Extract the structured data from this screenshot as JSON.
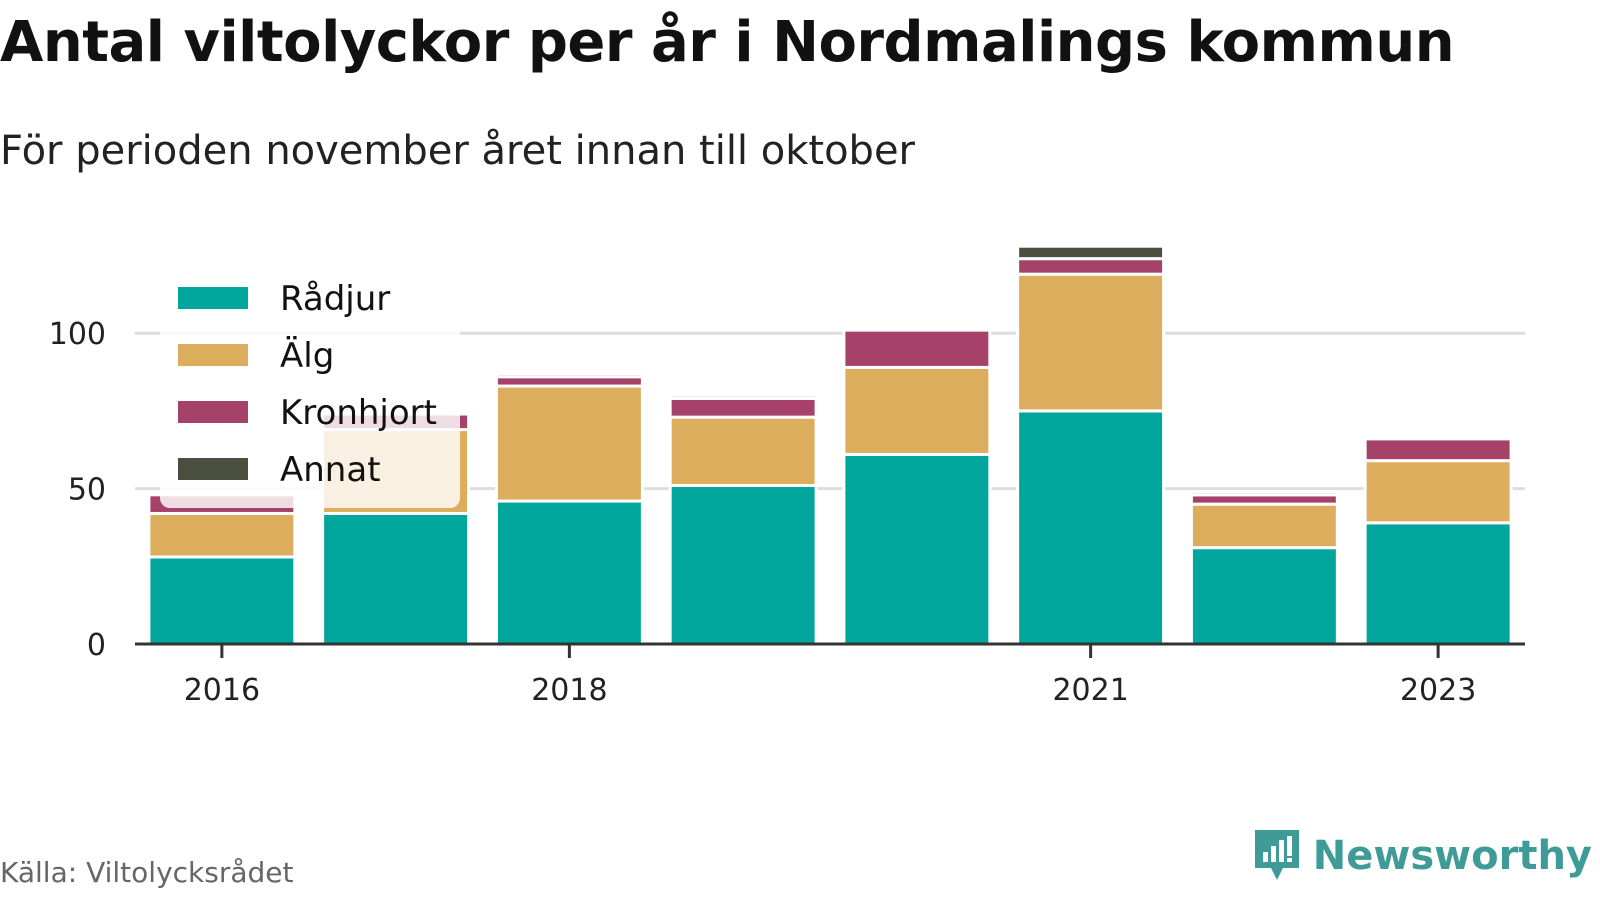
{
  "chart_data": {
    "type": "bar",
    "stacked": true,
    "title": "Antal viltolyckor per år i Nordmalings kommun",
    "subtitle": "För perioden november året innan till oktober",
    "x": [
      2016,
      2017,
      2018,
      2019,
      2020,
      2021,
      2022,
      2023
    ],
    "x_tick_labels": [
      "2016",
      "2018",
      "2021",
      "2023"
    ],
    "y_tick_labels": [
      "0",
      "50",
      "100"
    ],
    "ylim": [
      0,
      130
    ],
    "grid": true,
    "legend_position": "top-left",
    "series": [
      {
        "name": "Rådjur",
        "color": "#00a59b",
        "values": [
          28,
          42,
          46,
          51,
          61,
          75,
          31,
          39
        ]
      },
      {
        "name": "Älg",
        "color": "#dcad5c",
        "values": [
          14,
          27,
          37,
          22,
          28,
          44,
          14,
          20
        ]
      },
      {
        "name": "Kronhjort",
        "color": "#a6426a",
        "values": [
          6,
          5,
          3,
          6,
          12,
          5,
          3,
          7
        ]
      },
      {
        "name": "Annat",
        "color": "#4b4f40",
        "values": [
          0,
          0,
          1,
          1,
          0,
          4,
          1,
          0
        ]
      }
    ],
    "source": "Källa: Viltolycksrådet"
  },
  "brand": {
    "name": "Newsworthy",
    "icon": "newsworthy-logo-icon",
    "color": "#3f9b97"
  }
}
